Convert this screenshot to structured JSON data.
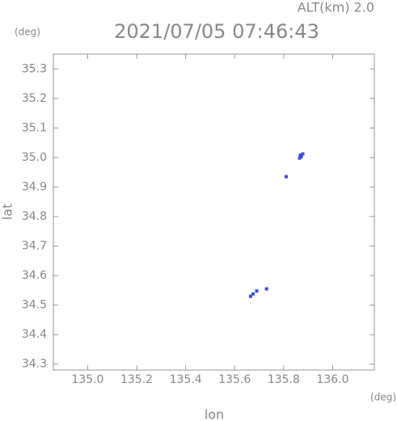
{
  "chart_data": {
    "type": "scatter",
    "title": "2021/07/05 07:46:43",
    "subtitle": "ALT(km) 2.0",
    "y_unit": "(deg)",
    "x_unit": "(deg)",
    "x_label": "lon",
    "y_label": "lat",
    "xlim": [
      134.86,
      136.17
    ],
    "ylim": [
      34.28,
      35.35
    ],
    "xticks": [
      {
        "value": 135.0,
        "label": "135.0"
      },
      135.2,
      135.4,
      135.6,
      135.8,
      {
        "value": 136.0,
        "label": "136.0"
      }
    ],
    "yticks": [
      35.3,
      35.2,
      35.1,
      {
        "value": 35.0,
        "label": "35.0"
      },
      34.9,
      34.8,
      34.7,
      34.6,
      34.5,
      34.4,
      34.3
    ],
    "series": [
      {
        "color": "#3b4fd6",
        "x": [
          135.865,
          135.872,
          135.878,
          135.868,
          135.81,
          135.665,
          135.675,
          135.69,
          135.73
        ],
        "values": [
          34.998,
          35.003,
          35.012,
          35.008,
          34.935,
          34.53,
          34.538,
          34.548,
          34.555
        ]
      }
    ]
  }
}
